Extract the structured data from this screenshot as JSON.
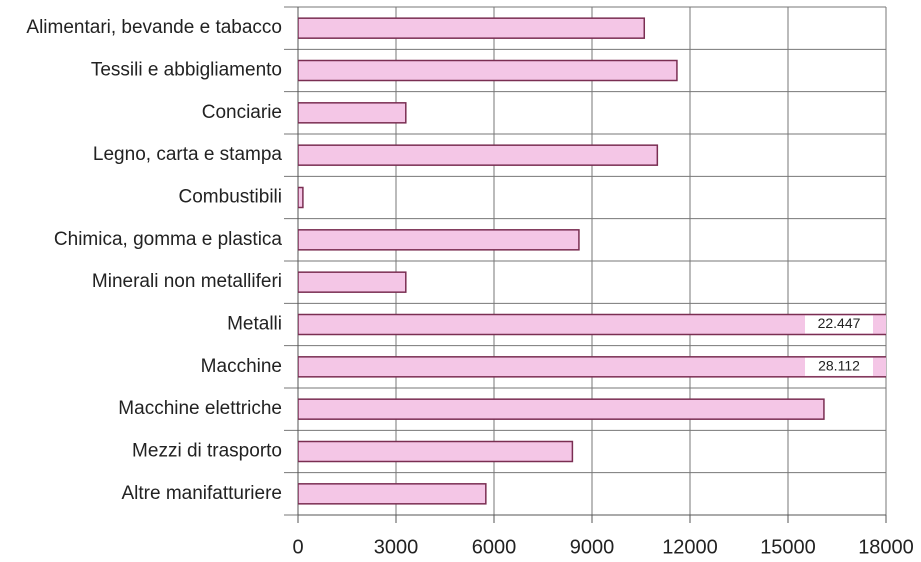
{
  "chart_data": {
    "type": "barh",
    "categories": [
      "Alimentari, bevande e tabacco",
      "Tessili e abbigliamento",
      "Conciarie",
      "Legno, carta e stampa",
      "Combustibili",
      "Chimica, gomma e plastica",
      "Minerali non metalliferi",
      "Metalli",
      "Macchine",
      "Macchine elettriche",
      "Mezzi di trasporto",
      "Altre manifatturiere"
    ],
    "values": [
      10600,
      11600,
      3300,
      11000,
      150,
      8600,
      3300,
      22447,
      28112,
      16100,
      8400,
      5750
    ],
    "value_labels": [
      null,
      null,
      null,
      null,
      null,
      null,
      null,
      "22.447",
      "28.112",
      null,
      null,
      null
    ],
    "color": "#f4c6e6",
    "edge_color": "#7a2e52",
    "xlim": [
      0,
      18000
    ],
    "xticks": [
      0,
      3000,
      6000,
      9000,
      12000,
      15000,
      18000
    ],
    "grid": true
  }
}
